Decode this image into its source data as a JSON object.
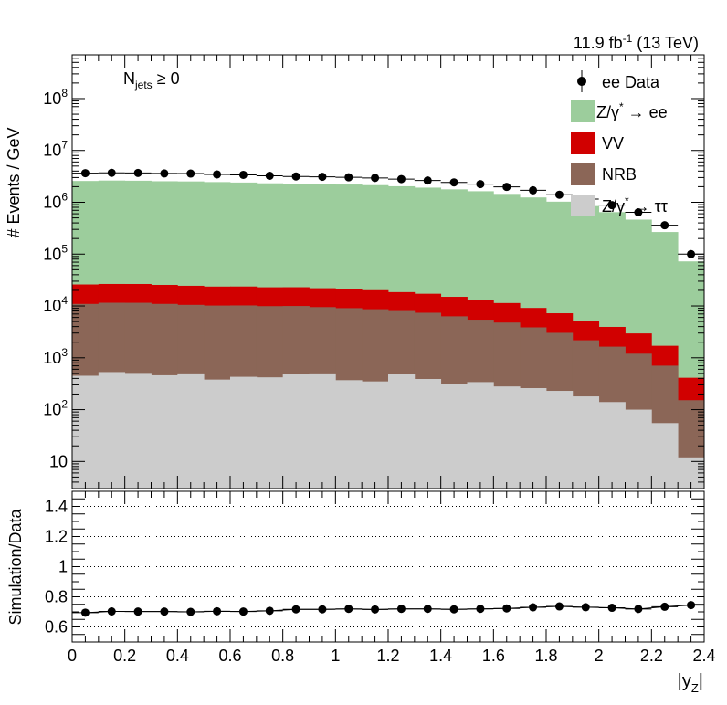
{
  "chart_data": {
    "type": "bar",
    "x_label_main": "|y",
    "x_label_sub": "Z",
    "x_label_end": "|",
    "x_range": [
      0,
      2.4
    ],
    "x_ticks": [
      "0",
      "0.2",
      "0.4",
      "0.6",
      "0.8",
      "1",
      "1.2",
      "1.4",
      "1.6",
      "1.8",
      "2",
      "2.2",
      "2.4"
    ],
    "lumi_label": {
      "value": "11.9 fb",
      "sup": "-1",
      "energy": " (13 TeV)"
    },
    "selection_label": {
      "main": "N",
      "sub": "jets",
      "rest": " ≥ 0"
    },
    "top_panel": {
      "ylabel": "# Events / GeV",
      "yscale": "log",
      "ylim": [
        3,
        700000000
      ],
      "y_ticks": [
        {
          "value": 10,
          "base": "10",
          "exp": ""
        },
        {
          "value": 100,
          "base": "10",
          "exp": "2"
        },
        {
          "value": 1000,
          "base": "10",
          "exp": "3"
        },
        {
          "value": 10000,
          "base": "10",
          "exp": "4"
        },
        {
          "value": 100000,
          "base": "10",
          "exp": "5"
        },
        {
          "value": 1000000,
          "base": "10",
          "exp": "6"
        },
        {
          "value": 10000000,
          "base": "10",
          "exp": "7"
        },
        {
          "value": 100000000,
          "base": "10",
          "exp": "8"
        }
      ],
      "bin_edges": [
        0,
        0.1,
        0.2,
        0.3,
        0.4,
        0.5,
        0.6,
        0.7,
        0.8,
        0.9,
        1.0,
        1.1,
        1.2,
        1.3,
        1.4,
        1.5,
        1.6,
        1.7,
        1.8,
        1.9,
        2.0,
        2.1,
        2.2,
        2.3,
        2.4
      ],
      "stack": [
        {
          "name": "Z/γ* → ττ",
          "legend_main": "Z/γ",
          "legend_sup": "*",
          "legend_rest": " → ττ",
          "color": "#cccccc",
          "values": [
            450,
            530,
            510,
            460,
            500,
            380,
            430,
            420,
            480,
            500,
            370,
            350,
            490,
            390,
            310,
            340,
            280,
            260,
            230,
            180,
            140,
            100,
            55,
            12
          ]
        },
        {
          "name": "NRB",
          "legend_main": "NRB",
          "legend_sup": "",
          "legend_rest": "",
          "color": "#8b6657",
          "values": [
            10500,
            11000,
            11000,
            10500,
            10000,
            9800,
            9800,
            9500,
            9500,
            9000,
            8700,
            8300,
            7500,
            7000,
            6000,
            5100,
            4500,
            3600,
            2800,
            2000,
            1500,
            1100,
            650,
            140
          ]
        },
        {
          "name": "VV",
          "legend_main": "VV",
          "legend_sup": "",
          "legend_rest": "",
          "color": "#d10000",
          "values": [
            15000,
            15000,
            15000,
            14500,
            14000,
            13500,
            13500,
            13000,
            13000,
            12500,
            12000,
            11500,
            10500,
            9800,
            8700,
            7500,
            6600,
            5300,
            4200,
            3000,
            2300,
            1750,
            1000,
            260
          ]
        },
        {
          "name": "Z/γ* → ee",
          "legend_main": "Z/γ",
          "legend_sup": "*",
          "legend_rest": " → ee",
          "color": "#9ccd9c",
          "values": [
            2550000,
            2600000,
            2580000,
            2520000,
            2500000,
            2430000,
            2380000,
            2300000,
            2260000,
            2230000,
            2180000,
            2120000,
            2020000,
            1900000,
            1760000,
            1620000,
            1440000,
            1230000,
            1020000,
            840000,
            640000,
            460000,
            265000,
            72000
          ]
        }
      ],
      "data": {
        "name": "ee Data",
        "values": [
          3650000,
          3700000,
          3680000,
          3600000,
          3580000,
          3450000,
          3380000,
          3250000,
          3150000,
          3100000,
          3030000,
          2950000,
          2800000,
          2630000,
          2420000,
          2240000,
          1980000,
          1700000,
          1400000,
          1150000,
          880000,
          640000,
          360000,
          100000
        ]
      }
    },
    "ratio_panel": {
      "ylabel": "Simulation/Data",
      "ylim": [
        0.5,
        1.5
      ],
      "y_ticks": [
        "0.6",
        "0.8",
        "1",
        "1.2",
        "1.4"
      ],
      "gridlines": [
        0.6,
        0.8,
        1.0,
        1.2,
        1.4
      ],
      "values": [
        0.695,
        0.703,
        0.702,
        0.702,
        0.7,
        0.704,
        0.702,
        0.707,
        0.717,
        0.717,
        0.72,
        0.716,
        0.72,
        0.72,
        0.717,
        0.72,
        0.723,
        0.73,
        0.736,
        0.731,
        0.727,
        0.719,
        0.734,
        0.745
      ]
    }
  }
}
